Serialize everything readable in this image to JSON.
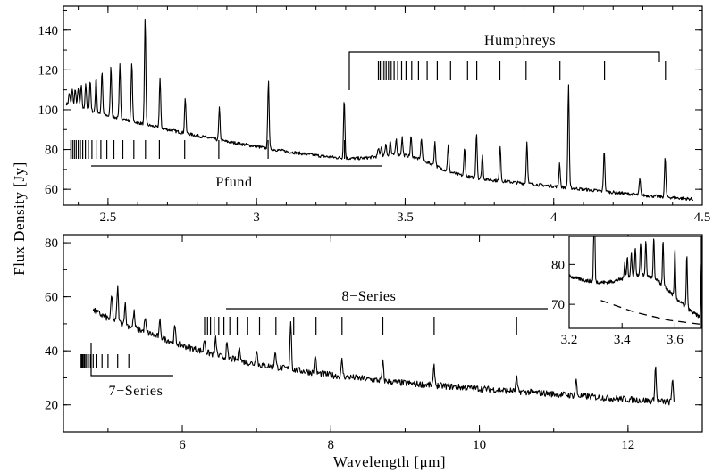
{
  "chart_data": [
    {
      "id": "top",
      "type": "line",
      "xlim": [
        2.35,
        4.5
      ],
      "ylim": [
        52,
        152
      ],
      "xticks": [
        2.5,
        3,
        3.5,
        4,
        4.5
      ],
      "xtick_labels": [
        "2.5",
        "3",
        "3.5",
        "4",
        "4.5"
      ],
      "yticks": [
        60,
        80,
        100,
        120,
        140
      ],
      "ytick_labels": [
        "60",
        "80",
        "100",
        "120",
        "140"
      ],
      "continuum": [
        [
          2.36,
          103
        ],
        [
          2.5,
          97
        ],
        [
          2.7,
          90
        ],
        [
          2.9,
          84
        ],
        [
          3.1,
          79
        ],
        [
          3.3,
          75
        ],
        [
          3.5,
          70
        ],
        [
          3.7,
          66
        ],
        [
          3.9,
          63
        ],
        [
          4.1,
          60
        ],
        [
          4.3,
          57
        ],
        [
          4.47,
          55
        ]
      ],
      "bump": {
        "center": 3.5,
        "width": 0.13,
        "height": 7
      },
      "lines": [
        {
          "x": 2.37,
          "h": 6
        },
        {
          "x": 2.38,
          "h": 8
        },
        {
          "x": 2.39,
          "h": 9
        },
        {
          "x": 2.4,
          "h": 10
        },
        {
          "x": 2.41,
          "h": 11
        },
        {
          "x": 2.425,
          "h": 13
        },
        {
          "x": 2.44,
          "h": 15
        },
        {
          "x": 2.46,
          "h": 18
        },
        {
          "x": 2.48,
          "h": 21
        },
        {
          "x": 2.51,
          "h": 25
        },
        {
          "x": 2.54,
          "h": 27
        },
        {
          "x": 2.58,
          "h": 30
        },
        {
          "x": 2.625,
          "h": 53
        },
        {
          "x": 2.675,
          "h": 25
        },
        {
          "x": 2.76,
          "h": 18
        },
        {
          "x": 2.875,
          "h": 16
        },
        {
          "x": 3.04,
          "h": 35
        },
        {
          "x": 3.295,
          "h": 30
        },
        {
          "x": 3.41,
          "h": 4
        },
        {
          "x": 3.42,
          "h": 5
        },
        {
          "x": 3.435,
          "h": 6
        },
        {
          "x": 3.45,
          "h": 7
        },
        {
          "x": 3.47,
          "h": 8
        },
        {
          "x": 3.49,
          "h": 9
        },
        {
          "x": 3.52,
          "h": 10
        },
        {
          "x": 3.555,
          "h": 11
        },
        {
          "x": 3.6,
          "h": 12
        },
        {
          "x": 3.645,
          "h": 13
        },
        {
          "x": 3.7,
          "h": 14
        },
        {
          "x": 3.74,
          "h": 23
        },
        {
          "x": 3.76,
          "h": 12
        },
        {
          "x": 3.82,
          "h": 18
        },
        {
          "x": 3.91,
          "h": 21
        },
        {
          "x": 4.02,
          "h": 12
        },
        {
          "x": 4.05,
          "h": 52
        },
        {
          "x": 4.17,
          "h": 21
        },
        {
          "x": 4.29,
          "h": 8
        },
        {
          "x": 4.375,
          "h": 20
        }
      ],
      "pfund_markers": [
        2.375,
        2.381,
        2.387,
        2.393,
        2.4,
        2.407,
        2.415,
        2.424,
        2.434,
        2.446,
        2.46,
        2.476,
        2.496,
        2.52,
        2.55,
        2.587,
        2.626,
        2.673,
        2.758,
        2.873,
        3.039,
        3.296
      ],
      "humphreys_markers": [
        3.41,
        3.416,
        3.422,
        3.429,
        3.436,
        3.444,
        3.453,
        3.463,
        3.475,
        3.488,
        3.503,
        3.522,
        3.545,
        3.574,
        3.608,
        3.653,
        3.71,
        3.741,
        3.819,
        3.907,
        4.021,
        4.171,
        4.376
      ],
      "pfund_label": "Pfund",
      "humphreys_label": "Humphreys"
    },
    {
      "id": "bottom",
      "type": "line",
      "xlim": [
        4.4,
        13.0
      ],
      "ylim": [
        10,
        83
      ],
      "xticks": [
        6,
        8,
        10,
        12
      ],
      "xtick_labels": [
        "6",
        "8",
        "10",
        "12"
      ],
      "yticks": [
        20,
        40,
        60,
        80
      ],
      "ytick_labels": [
        "20",
        "40",
        "60",
        "80"
      ],
      "xlabel": "Wavelength [μm]",
      "continuum": [
        [
          4.8,
          55
        ],
        [
          5.0,
          52
        ],
        [
          5.5,
          47
        ],
        [
          6.0,
          42
        ],
        [
          6.5,
          38
        ],
        [
          7.0,
          35
        ],
        [
          7.5,
          33
        ],
        [
          8.0,
          31
        ],
        [
          9.0,
          28
        ],
        [
          10.0,
          26
        ],
        [
          11.0,
          24
        ],
        [
          12.0,
          22
        ],
        [
          12.6,
          21
        ]
      ],
      "lines": [
        {
          "x": 4.65,
          "h": 24
        },
        {
          "x": 5.05,
          "h": 9
        },
        {
          "x": 5.13,
          "h": 13
        },
        {
          "x": 5.23,
          "h": 8
        },
        {
          "x": 5.35,
          "h": 6
        },
        {
          "x": 5.5,
          "h": 5
        },
        {
          "x": 5.7,
          "h": 6
        },
        {
          "x": 5.9,
          "h": 6
        },
        {
          "x": 6.3,
          "h": 5
        },
        {
          "x": 6.45,
          "h": 6
        },
        {
          "x": 6.6,
          "h": 5
        },
        {
          "x": 6.77,
          "h": 6
        },
        {
          "x": 7.0,
          "h": 6
        },
        {
          "x": 7.25,
          "h": 6
        },
        {
          "x": 7.46,
          "h": 18
        },
        {
          "x": 7.79,
          "h": 7
        },
        {
          "x": 8.15,
          "h": 6
        },
        {
          "x": 8.7,
          "h": 7
        },
        {
          "x": 9.39,
          "h": 7
        },
        {
          "x": 10.5,
          "h": 5
        },
        {
          "x": 11.3,
          "h": 6
        },
        {
          "x": 12.37,
          "h": 13
        },
        {
          "x": 12.6,
          "h": 9
        }
      ],
      "seven_markers": [
        4.63,
        4.645,
        4.66,
        4.675,
        4.69,
        4.71,
        4.735,
        4.765,
        4.8,
        4.85,
        4.92,
        5.0,
        5.13,
        5.28
      ],
      "eight_markers": [
        6.3,
        6.34,
        6.38,
        6.43,
        6.49,
        6.56,
        6.64,
        6.74,
        6.88,
        7.04,
        7.26,
        7.5,
        7.8,
        8.15,
        8.7,
        9.39,
        10.5
      ],
      "eight_label": "8−Series",
      "seven_label": "7−Series"
    },
    {
      "id": "inset",
      "type": "line",
      "xlim": [
        3.2,
        3.7
      ],
      "ylim": [
        64,
        87
      ],
      "xticks": [
        3.2,
        3.4,
        3.6
      ],
      "xtick_labels": [
        "3.2",
        "3.4",
        "3.6"
      ],
      "yticks": [
        70,
        80
      ],
      "ytick_labels": [
        "70",
        "80"
      ],
      "continuum_dashed": [
        [
          3.32,
          71
        ],
        [
          3.45,
          68
        ],
        [
          3.58,
          66
        ],
        [
          3.7,
          65
        ]
      ]
    }
  ],
  "ylabel": "Flux Density [Jy]"
}
